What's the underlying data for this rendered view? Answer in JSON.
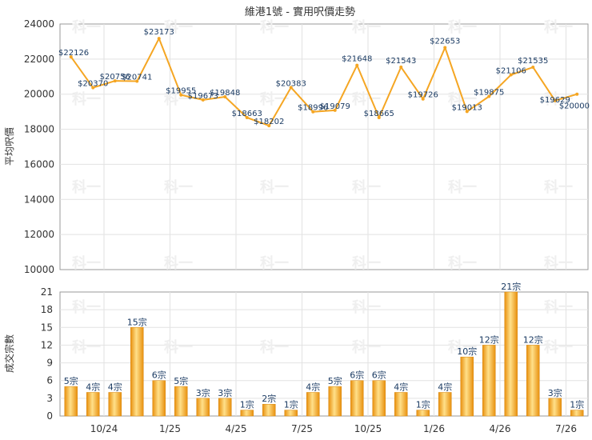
{
  "chart_data": [
    {
      "type": "line",
      "title": "維港1號 - 實用呎價走勢",
      "ylabel": "平均呎價",
      "ylim": [
        10000,
        24000
      ],
      "yticks": [
        "10000",
        "12000",
        "14000",
        "16000",
        "18000",
        "20000",
        "22000",
        "24000"
      ],
      "point_labels": [
        "$22126",
        "$20370",
        "$20756",
        "$20741",
        "$23173",
        "$19955",
        "$19673",
        "$19848",
        "$18663",
        "$18202",
        "$20383",
        "$18996",
        "$19079",
        "$21648",
        "$18665",
        "$21543",
        "$19726",
        "$22653",
        "$19013",
        "$19875",
        "$21106",
        "$21535",
        "$19629",
        "$20000"
      ],
      "series": [
        {
          "values": [
            22126,
            20370,
            20756,
            20741,
            23173,
            19955,
            19673,
            19848,
            18663,
            18202,
            20383,
            18996,
            19079,
            21648,
            18665,
            21543,
            19726,
            22653,
            19013,
            19875,
            21106,
            21535,
            19629,
            20000
          ]
        }
      ],
      "color": "#F5A623",
      "grid": true
    },
    {
      "type": "bar",
      "ylabel": "成交宗數",
      "ylim": [
        0,
        21
      ],
      "yticks": [
        "0",
        "3",
        "6",
        "9",
        "12",
        "15",
        "18",
        "21"
      ],
      "x_tick_labels": [
        "10/24",
        "1/25",
        "4/25",
        "7/25",
        "10/25",
        "1/26",
        "4/26",
        "7/26"
      ],
      "bar_labels": [
        "5宗",
        "4宗",
        "4宗",
        "15宗",
        "6宗",
        "5宗",
        "3宗",
        "3宗",
        "1宗",
        "2宗",
        "1宗",
        "4宗",
        "5宗",
        "6宗",
        "6宗",
        "4宗",
        "1宗",
        "4宗",
        "10宗",
        "12宗",
        "21宗",
        "12宗",
        "3宗",
        "1宗"
      ],
      "values": [
        5,
        4,
        4,
        15,
        6,
        5,
        3,
        3,
        1,
        2,
        1,
        4,
        5,
        6,
        6,
        4,
        1,
        4,
        10,
        12,
        21,
        12,
        3,
        1
      ],
      "color": "#F5A623",
      "grid": true
    }
  ],
  "watermark": "科一"
}
